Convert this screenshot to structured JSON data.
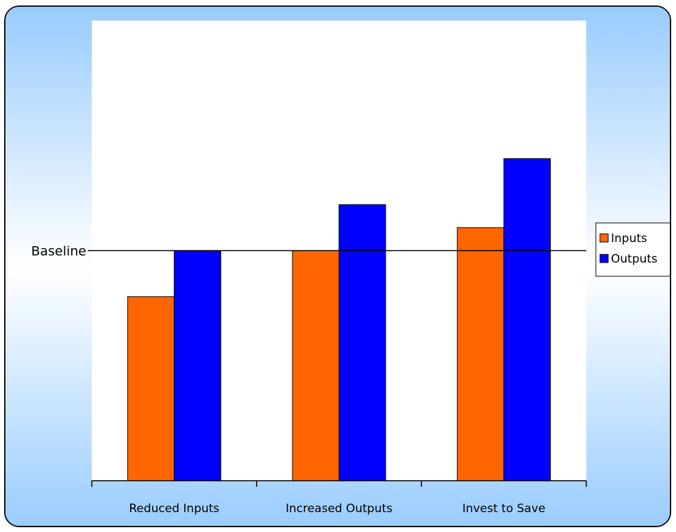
{
  "chart_data": {
    "type": "bar",
    "categories": [
      "Reduced Inputs",
      "Increased Outputs",
      "Invest to Save"
    ],
    "series": [
      {
        "name": "Inputs",
        "values": [
          0.8,
          1.0,
          1.1
        ],
        "color": "#FF6600"
      },
      {
        "name": "Outputs",
        "values": [
          1.0,
          1.2,
          1.4
        ],
        "color": "#0000FF"
      }
    ],
    "ylim": [
      0,
      2.0
    ],
    "reference_line": {
      "label": "Baseline",
      "value": 1.0
    },
    "legend": {
      "placement": "right",
      "entries": [
        "Inputs",
        "Outputs"
      ]
    },
    "grid": false,
    "background": {
      "gradient_edge": "#99CCFF",
      "gradient_center": "#FFFFFF",
      "plot_area": "#FFFFFF"
    }
  }
}
